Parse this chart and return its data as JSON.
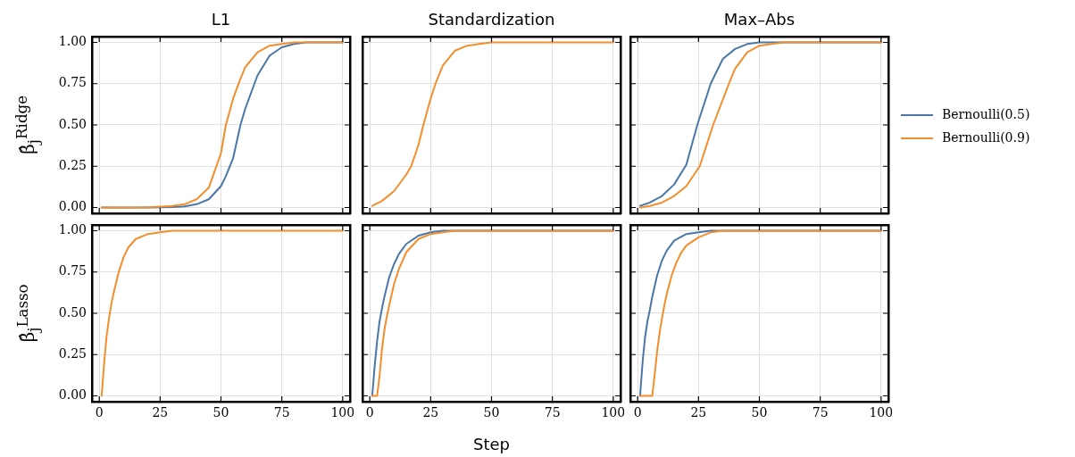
{
  "chart_data": [
    {
      "type": "line",
      "title": "L1",
      "ylabel": "β̂$_{j}$$^{Ridge}$",
      "xlim": [
        -3,
        103
      ],
      "ylim": [
        -0.035,
        1.035
      ],
      "xticks": [
        0,
        25,
        50,
        75,
        100
      ],
      "yticks": [
        {
          "value": 0,
          "label": "0.00"
        },
        {
          "value": 0.25,
          "label": "0.25"
        },
        {
          "value": 0.5,
          "label": "0.50"
        },
        {
          "value": 0.75,
          "label": "0.75"
        },
        {
          "value": 1,
          "label": "1.00"
        }
      ],
      "grid": true,
      "tick_labels": "y",
      "x": [
        1,
        10,
        20,
        30,
        35,
        40,
        45,
        50,
        52,
        55,
        58,
        60,
        65,
        70,
        75,
        80,
        85,
        90,
        100
      ],
      "series": [
        {
          "color": "#4a76a8",
          "values": [
            0,
            0,
            0,
            0.003,
            0.007,
            0.02,
            0.05,
            0.13,
            0.19,
            0.3,
            0.5,
            0.6,
            0.8,
            0.92,
            0.97,
            0.99,
            1,
            1,
            1
          ]
        },
        {
          "color": "#f28e2b",
          "values": [
            0,
            0,
            0.002,
            0.01,
            0.02,
            0.05,
            0.12,
            0.33,
            0.5,
            0.66,
            0.78,
            0.85,
            0.94,
            0.98,
            0.99,
            1,
            1,
            1,
            1
          ]
        }
      ]
    },
    {
      "type": "line",
      "title": "Standardization",
      "xlim": [
        -3,
        103
      ],
      "ylim": [
        -0.035,
        1.035
      ],
      "xticks": [
        0,
        25,
        50,
        75,
        100
      ],
      "yticks": [
        0,
        0.25,
        0.5,
        0.75,
        1
      ],
      "grid": true,
      "tick_labels": false,
      "x": [
        1,
        5,
        10,
        15,
        17,
        20,
        22,
        25,
        27,
        30,
        35,
        40,
        45,
        50,
        60,
        100
      ],
      "series": [
        {
          "color": "#f28e2b",
          "values": [
            0.01,
            0.04,
            0.1,
            0.2,
            0.25,
            0.38,
            0.5,
            0.66,
            0.75,
            0.86,
            0.95,
            0.98,
            0.99,
            1,
            1,
            1
          ]
        }
      ]
    },
    {
      "type": "line",
      "title": "Max–Abs",
      "xlim": [
        -3,
        103
      ],
      "ylim": [
        -0.035,
        1.035
      ],
      "xticks": [
        0,
        25,
        50,
        75,
        100
      ],
      "yticks": [
        0,
        0.25,
        0.5,
        0.75,
        1
      ],
      "grid": true,
      "tick_labels": false,
      "legend": "right",
      "series": [
        {
          "name": "Bernoulli(0.5)",
          "color": "#4a76a8",
          "x": [
            1,
            5,
            10,
            15,
            20,
            24.5,
            30,
            35,
            40,
            45,
            50,
            60,
            100
          ],
          "values": [
            0.01,
            0.03,
            0.07,
            0.14,
            0.26,
            0.5,
            0.75,
            0.9,
            0.96,
            0.99,
            1,
            1,
            1
          ]
        },
        {
          "name": "Bernoulli(0.9)",
          "color": "#f28e2b",
          "x": [
            1,
            5,
            10,
            15,
            20,
            25.5,
            31,
            37.5,
            40,
            45,
            50,
            55,
            60,
            100
          ],
          "values": [
            0,
            0.01,
            0.03,
            0.07,
            0.13,
            0.25,
            0.5,
            0.75,
            0.84,
            0.94,
            0.98,
            0.99,
            1,
            1
          ]
        }
      ]
    },
    {
      "type": "line",
      "ylabel": "β̂$_{j}$$^{Lasso}$",
      "xlim": [
        -3,
        103
      ],
      "ylim": [
        -0.035,
        1.035
      ],
      "xticks": [
        0,
        25,
        50,
        75,
        100
      ],
      "yticks": [
        {
          "value": 0,
          "label": "0.00"
        },
        {
          "value": 0.25,
          "label": "0.25"
        },
        {
          "value": 0.5,
          "label": "0.50"
        },
        {
          "value": 0.75,
          "label": "0.75"
        },
        {
          "value": 1,
          "label": "1.00"
        }
      ],
      "grid": true,
      "x": [
        1,
        2,
        3,
        4,
        5,
        6,
        8,
        10,
        12,
        15,
        20,
        25,
        30,
        100
      ],
      "series": [
        {
          "color": "#f28e2b",
          "values": [
            0,
            0.2,
            0.36,
            0.47,
            0.56,
            0.63,
            0.75,
            0.84,
            0.9,
            0.95,
            0.98,
            0.99,
            1,
            1
          ]
        }
      ]
    },
    {
      "type": "line",
      "xlabel": "Step",
      "xlim": [
        -3,
        103
      ],
      "ylim": [
        -0.035,
        1.035
      ],
      "xticks": [
        0,
        25,
        50,
        75,
        100
      ],
      "yticks": [
        0,
        0.25,
        0.5,
        0.75,
        1
      ],
      "grid": true,
      "tick_labels": "x",
      "series": [
        {
          "color": "#4a76a8",
          "x": [
            1,
            2,
            3,
            4,
            5,
            6,
            8,
            10,
            12,
            15,
            20,
            25,
            30,
            100
          ],
          "values": [
            0,
            0.18,
            0.33,
            0.45,
            0.53,
            0.6,
            0.72,
            0.8,
            0.86,
            0.92,
            0.97,
            0.99,
            1,
            1
          ]
        },
        {
          "color": "#f28e2b",
          "x": [
            1,
            2,
            3,
            4,
            5,
            6,
            7,
            8,
            10,
            12,
            15,
            20,
            25,
            30,
            35,
            100
          ],
          "values": [
            0,
            0,
            0,
            0.12,
            0.28,
            0.4,
            0.48,
            0.55,
            0.68,
            0.77,
            0.87,
            0.95,
            0.98,
            0.99,
            1,
            1
          ]
        }
      ]
    },
    {
      "type": "line",
      "xlim": [
        -3,
        103
      ],
      "ylim": [
        -0.035,
        1.035
      ],
      "xticks": [
        0,
        25,
        50,
        75,
        100
      ],
      "yticks": [
        0,
        0.25,
        0.5,
        0.75,
        1
      ],
      "grid": true,
      "tick_labels": "x",
      "series": [
        {
          "color": "#4a76a8",
          "x": [
            1,
            2,
            3,
            4,
            5,
            6,
            8,
            10,
            12,
            15,
            20,
            25,
            30,
            100
          ],
          "values": [
            0,
            0.2,
            0.35,
            0.45,
            0.52,
            0.6,
            0.73,
            0.82,
            0.88,
            0.94,
            0.98,
            0.99,
            1,
            1
          ]
        },
        {
          "color": "#f28e2b",
          "x": [
            1,
            6,
            7,
            8,
            9,
            10,
            11,
            12,
            14,
            16,
            18,
            20,
            25,
            30,
            35,
            40,
            100
          ],
          "values": [
            0,
            0,
            0.13,
            0.27,
            0.38,
            0.47,
            0.55,
            0.62,
            0.73,
            0.81,
            0.87,
            0.91,
            0.96,
            0.99,
            1,
            1,
            1
          ]
        }
      ]
    }
  ]
}
